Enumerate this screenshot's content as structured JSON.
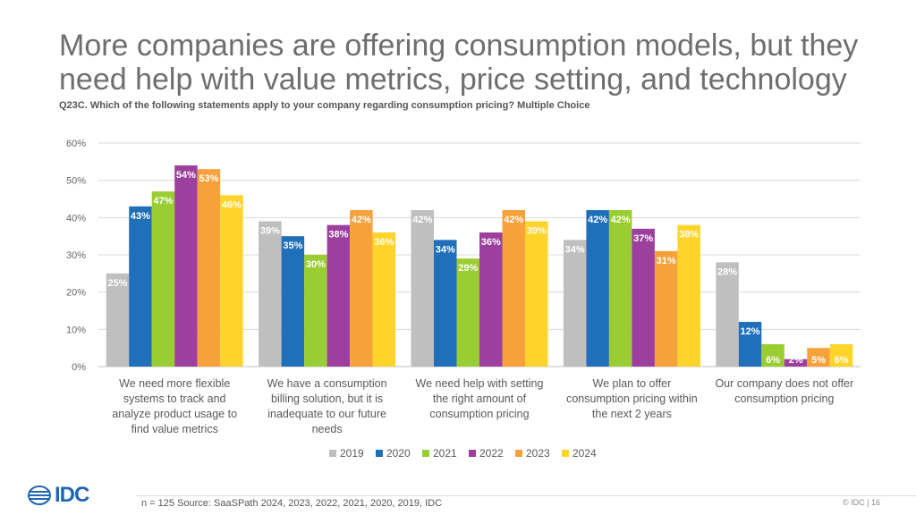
{
  "header": {
    "title": "More companies are offering consumption models, but they need help with value metrics, price setting, and technology",
    "subtitle": "Q23C. Which of the following statements apply to your company regarding consumption pricing?  Multiple Choice"
  },
  "footer": {
    "source": "n = 125  Source: SaaSPath 2024, 2023, 2022, 2021, 2020, 2019, IDC",
    "page_label": "© IDC |  16",
    "logo_text": "IDC"
  },
  "colors": {
    "2019": "#bfbfbf",
    "2020": "#1f6fba",
    "2021": "#9acd32",
    "2022": "#9c3f9d",
    "2023": "#f7a13a",
    "2024": "#fed42a"
  },
  "chart_data": {
    "type": "bar",
    "title": "",
    "xlabel": "",
    "ylabel": "",
    "ylim": [
      0,
      60
    ],
    "yticks": [
      "0%",
      "10%",
      "20%",
      "30%",
      "40%",
      "50%",
      "60%"
    ],
    "grid": true,
    "legend_position": "bottom",
    "categories": [
      "We need more flexible systems to track and analyze product usage to find value metrics",
      "We have a consumption billing solution, but it is inadequate to our future needs",
      "We need help with setting the right amount of consumption pricing",
      "We plan to offer consumption pricing within the next 2 years",
      "Our company does not offer consumption pricing"
    ],
    "category_lines": [
      [
        "We need more flexible",
        "systems to track and",
        "analyze product usage to",
        "find value metrics"
      ],
      [
        "We have a consumption",
        "billing solution, but it is",
        "inadequate to our future",
        "needs"
      ],
      [
        "We need help with setting",
        "the right amount of",
        "consumption pricing"
      ],
      [
        "We plan to offer",
        "consumption pricing within",
        "the next 2 years"
      ],
      [
        "Our company does not offer",
        "consumption pricing"
      ]
    ],
    "series": [
      {
        "name": "2019",
        "values": [
          25,
          39,
          42,
          34,
          28
        ]
      },
      {
        "name": "2020",
        "values": [
          43,
          35,
          34,
          42,
          12
        ]
      },
      {
        "name": "2021",
        "values": [
          47,
          30,
          29,
          42,
          6
        ]
      },
      {
        "name": "2022",
        "values": [
          54,
          38,
          36,
          37,
          2
        ]
      },
      {
        "name": "2023",
        "values": [
          53,
          42,
          42,
          31,
          5
        ]
      },
      {
        "name": "2024",
        "values": [
          46,
          36,
          39,
          38,
          6
        ]
      }
    ]
  }
}
